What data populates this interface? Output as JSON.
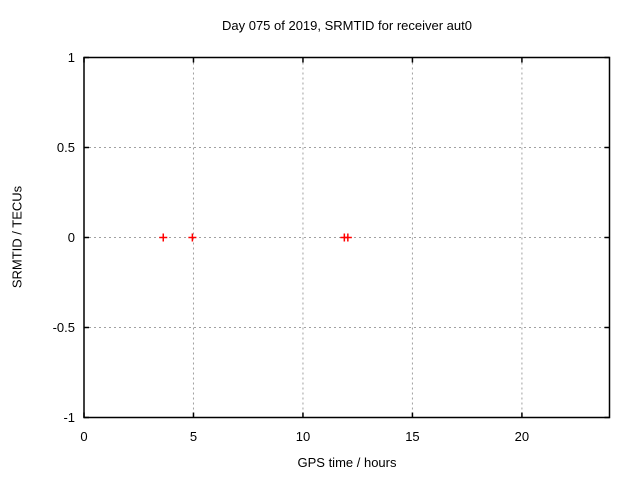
{
  "chart_data": {
    "type": "scatter",
    "title": "Day 075 of 2019, SRMTID for receiver aut0",
    "xlabel": "GPS time / hours",
    "ylabel": "SRMTID / TECUs",
    "xlim": [
      0,
      24
    ],
    "ylim": [
      -1,
      1
    ],
    "xticks": {
      "values": [
        0,
        5,
        10,
        15,
        20
      ],
      "labels": [
        "0",
        "5",
        "10",
        "15",
        "20"
      ]
    },
    "yticks": {
      "values": [
        -1,
        -0.5,
        0,
        0.5,
        1
      ],
      "labels": [
        "-1",
        "-0.5",
        "0",
        "0.5",
        "1"
      ]
    },
    "grid": "dotted",
    "legend": "none",
    "series": [
      {
        "name": "SRMTID",
        "marker": "plus",
        "color": "#ff0000",
        "x": [
          3.62,
          4.95,
          11.89,
          12.05
        ],
        "y": [
          0,
          0,
          0,
          0
        ]
      }
    ]
  },
  "style": {
    "background": "#ffffff",
    "text_color": "#000000",
    "border_color": "#000000",
    "grid_color": "#a0a0a0",
    "marker_color": "#ff0000"
  }
}
